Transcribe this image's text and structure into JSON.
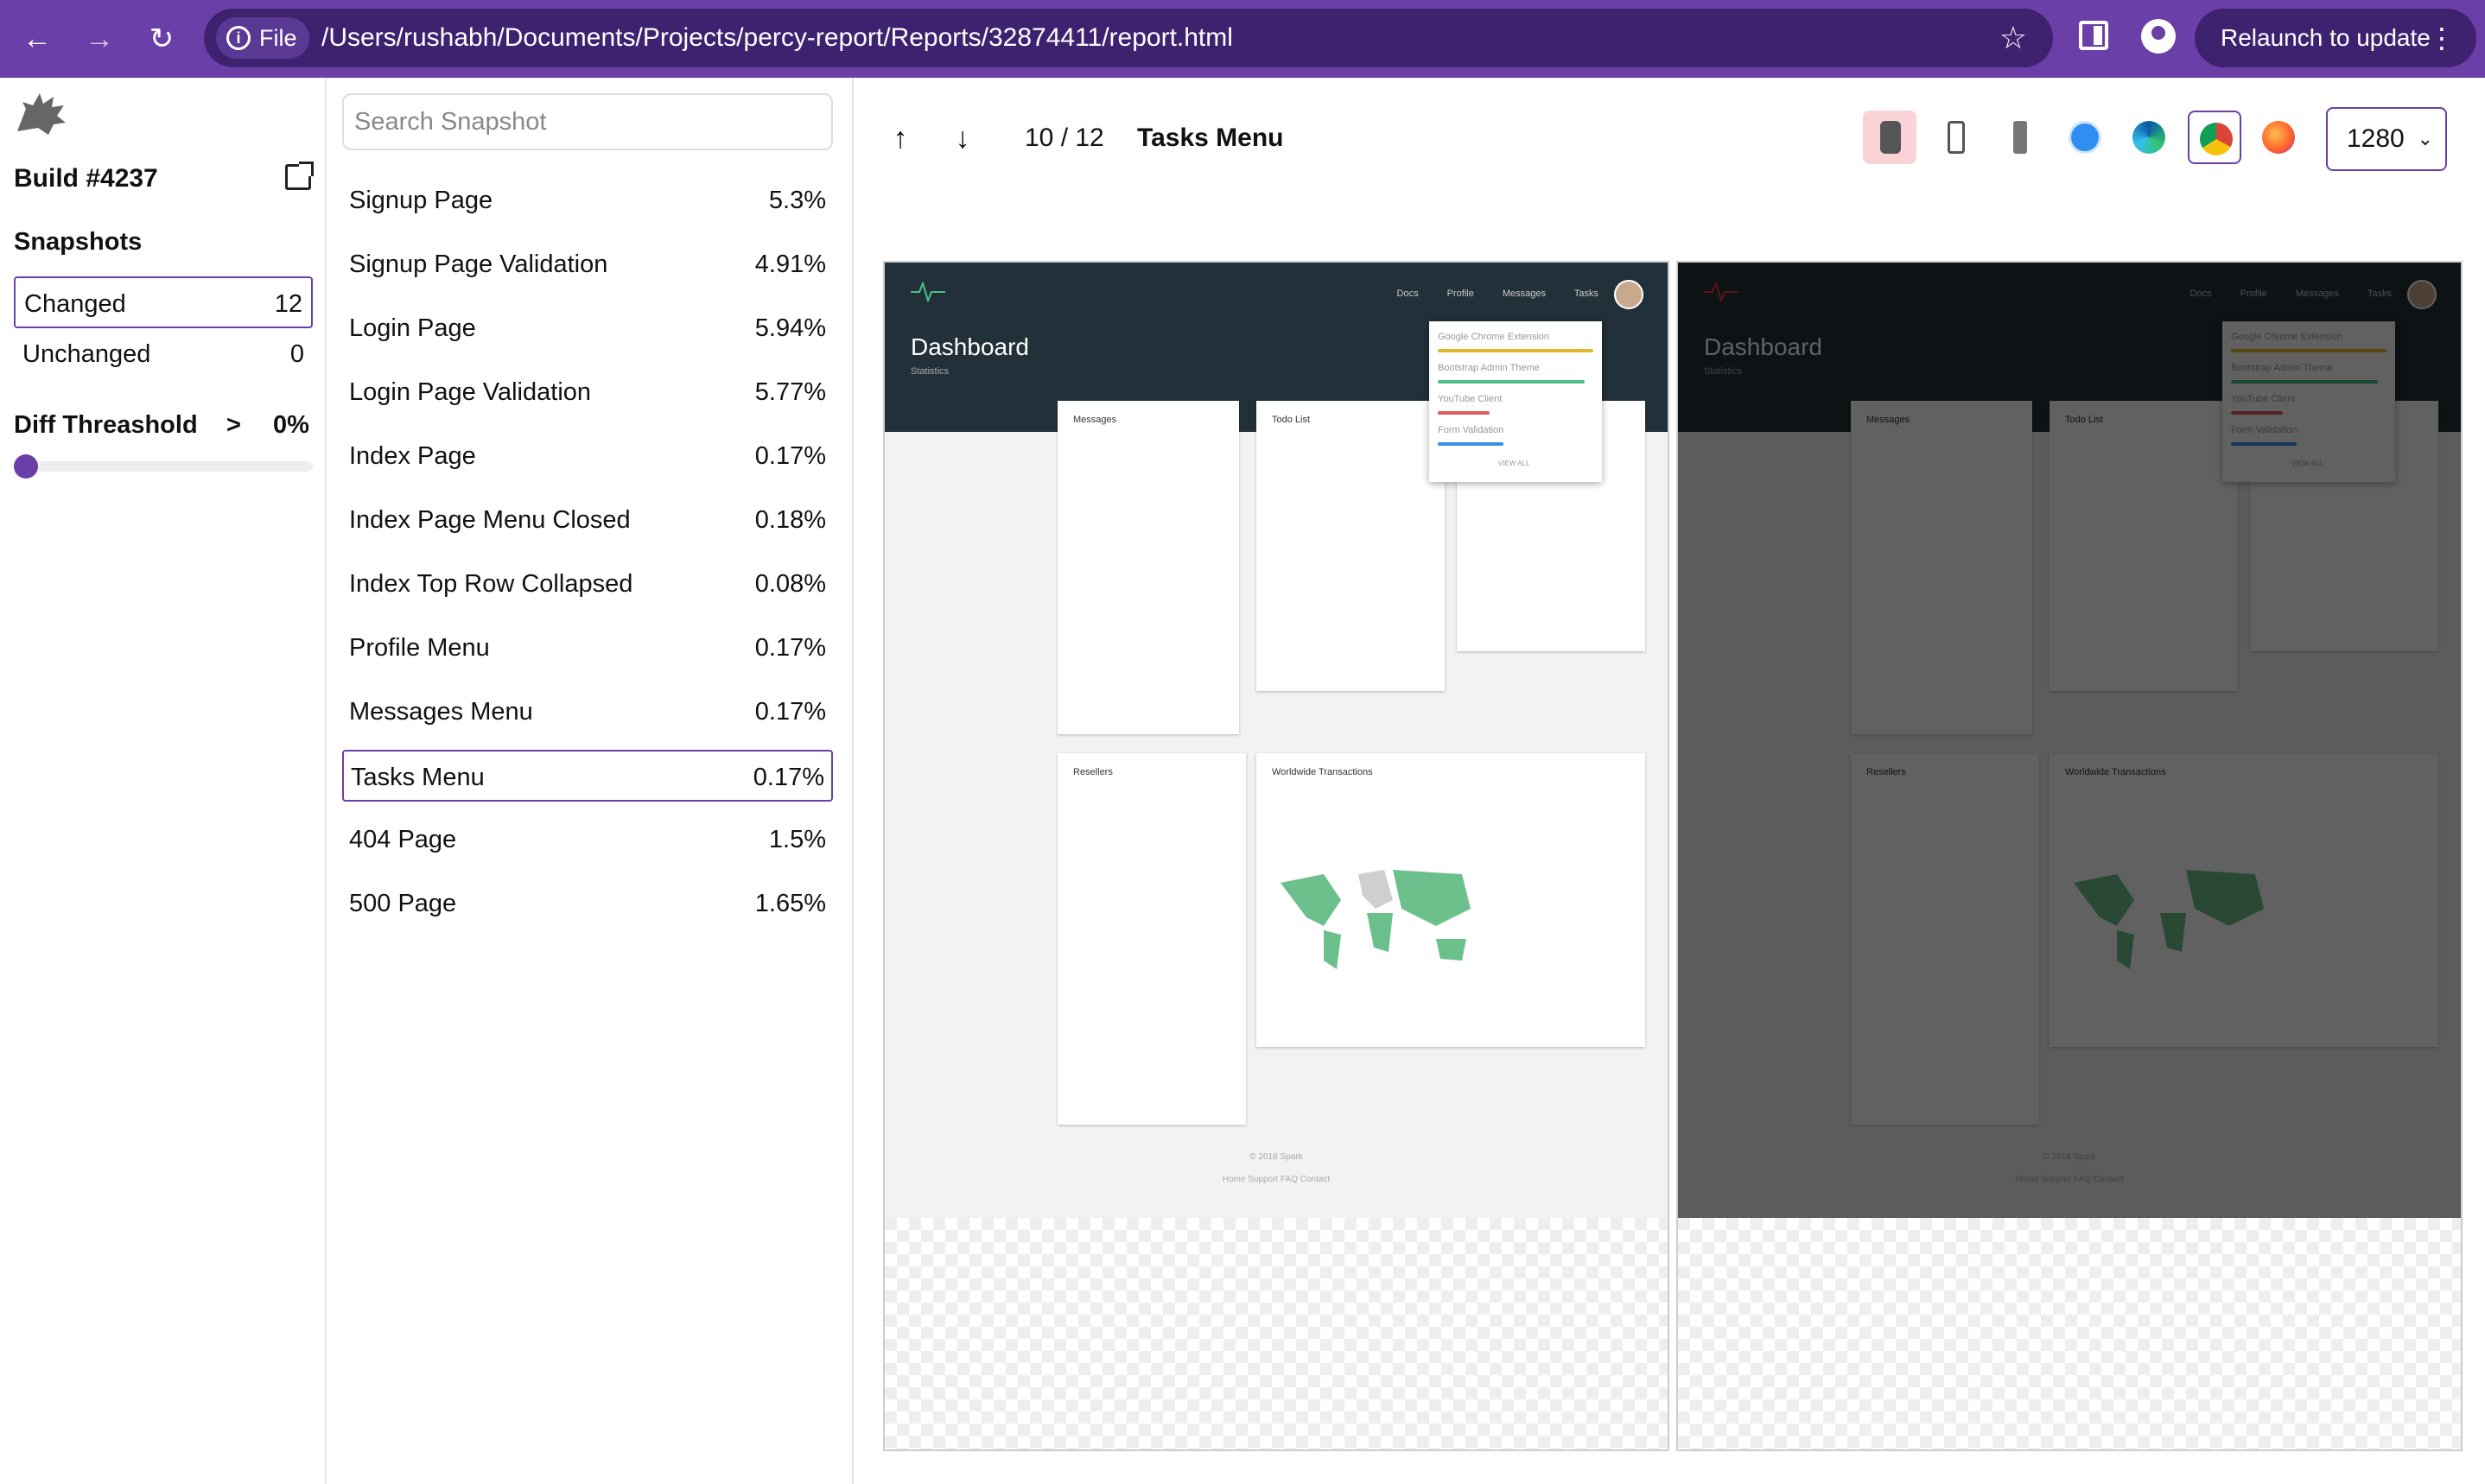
{
  "browser": {
    "file_chip": "File",
    "url": "/Users/rushabh/Documents/Projects/percy-report/Reports/32874411/report.html",
    "relaunch_label": "Relaunch to update"
  },
  "sidebar": {
    "build_title": "Build #4237",
    "snapshots_heading": "Snapshots",
    "filters": [
      {
        "label": "Changed",
        "count": "12"
      },
      {
        "label": "Unchanged",
        "count": "0"
      }
    ],
    "threshold_label": "Diff Threashold",
    "threshold_op": ">",
    "threshold_value": "0%",
    "threshold_level": 0
  },
  "snapshot_list": {
    "search_placeholder": "Search Snapshot",
    "items": [
      {
        "name": "Signup Page",
        "diff": "5.3%"
      },
      {
        "name": "Signup Page Validation",
        "diff": "4.91%"
      },
      {
        "name": "Login Page",
        "diff": "5.94%"
      },
      {
        "name": "Login Page Validation",
        "diff": "5.77%"
      },
      {
        "name": "Index Page",
        "diff": "0.17%"
      },
      {
        "name": "Index Page Menu Closed",
        "diff": "0.18%"
      },
      {
        "name": "Index Top Row Collapsed",
        "diff": "0.08%"
      },
      {
        "name": "Profile Menu",
        "diff": "0.17%"
      },
      {
        "name": "Messages Menu",
        "diff": "0.17%"
      },
      {
        "name": "Tasks Menu",
        "diff": "0.17%"
      },
      {
        "name": "404 Page",
        "diff": "1.5%"
      },
      {
        "name": "500 Page",
        "diff": "1.65%"
      }
    ],
    "active_index": 9
  },
  "toolbar": {
    "counter": "10 / 12",
    "snapshot_name": "Tasks Menu",
    "width_value": "1280",
    "browser_icons": [
      "device-icon",
      "iphone-icon",
      "android-icon",
      "safari-icon",
      "edge-icon",
      "chrome-icon",
      "firefox-icon"
    ],
    "colors": {
      "accent": "#6b3fa8",
      "diff_highlight": "#e53935"
    }
  },
  "screenshot": {
    "title": "Dashboard",
    "subtitle": "Statistics",
    "nav": "Docs Profile Messages Tasks",
    "cards": [
      "Messages",
      "Todo List",
      "Resellers",
      "Worldwide Transactions"
    ],
    "menu_items": [
      "Google Chrome Extension",
      "Bootstrap Admin Theme",
      "YouTube Client",
      "Form Validation",
      "VIEW ALL"
    ],
    "footer_copy": "© 2018 Spark",
    "footer_links": "Home Support FAQ Contact"
  }
}
